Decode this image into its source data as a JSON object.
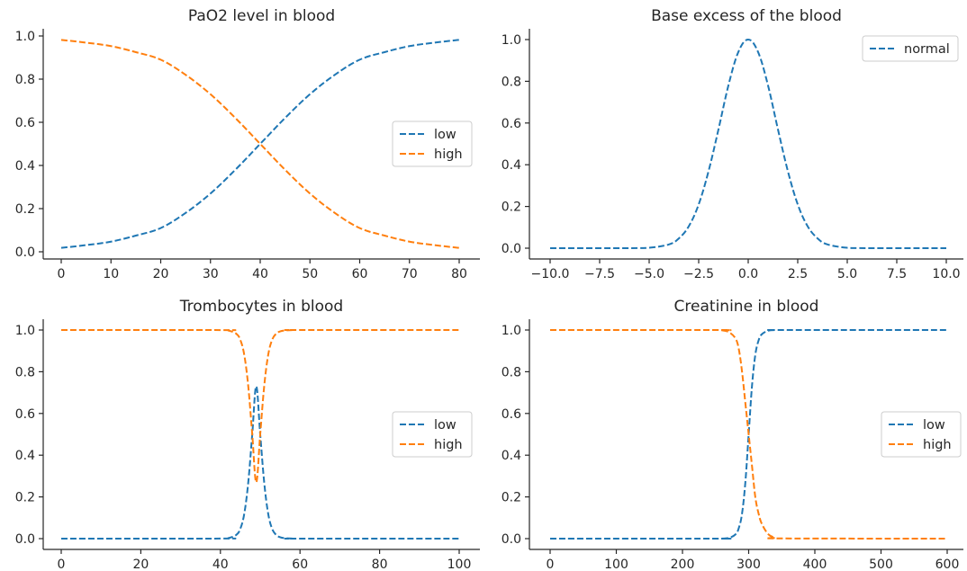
{
  "colors": {
    "low": "#1f77b4",
    "high": "#ff7f0e",
    "normal": "#1f77b4"
  },
  "chart_data": [
    {
      "type": "line",
      "title": "PaO2 level in blood",
      "xlim": [
        0,
        80
      ],
      "ylim": [
        0,
        1
      ],
      "xticks": [
        "0",
        "10",
        "20",
        "30",
        "40",
        "50",
        "60",
        "70",
        "80"
      ],
      "xtick_values": [
        0,
        10,
        20,
        30,
        40,
        50,
        60,
        70,
        80
      ],
      "yticks": [
        "0.0",
        "0.2",
        "0.4",
        "0.6",
        "0.8",
        "1.0"
      ],
      "ytick_values": [
        0,
        0.2,
        0.4,
        0.6,
        0.8,
        1.0
      ],
      "legend": "center-right",
      "x": [
        0,
        5,
        10,
        15,
        20,
        25,
        30,
        35,
        40,
        45,
        50,
        55,
        60,
        65,
        70,
        75,
        80
      ],
      "series": [
        {
          "name": "low",
          "color_key": "low",
          "values": [
            0.018,
            0.031,
            0.047,
            0.075,
            0.11,
            0.18,
            0.27,
            0.38,
            0.5,
            0.62,
            0.73,
            0.82,
            0.89,
            0.925,
            0.953,
            0.969,
            0.982
          ]
        },
        {
          "name": "high",
          "color_key": "high",
          "values": [
            0.982,
            0.969,
            0.953,
            0.925,
            0.89,
            0.82,
            0.73,
            0.62,
            0.5,
            0.38,
            0.27,
            0.18,
            0.11,
            0.075,
            0.047,
            0.031,
            0.018
          ]
        }
      ]
    },
    {
      "type": "line",
      "title": "Base excess of the blood",
      "xlim": [
        -10,
        10
      ],
      "ylim": [
        0,
        1
      ],
      "xticks": [
        "−10.0",
        "−7.5",
        "−5.0",
        "−2.5",
        "0.0",
        "2.5",
        "5.0",
        "7.5",
        "10.0"
      ],
      "xtick_values": [
        -10,
        -7.5,
        -5,
        -2.5,
        0,
        2.5,
        5,
        7.5,
        10
      ],
      "yticks": [
        "0.0",
        "0.2",
        "0.4",
        "0.6",
        "0.8",
        "1.0"
      ],
      "ytick_values": [
        0,
        0.2,
        0.4,
        0.6,
        0.8,
        1.0
      ],
      "legend": "top-right",
      "x": [
        -10,
        -6,
        -5,
        -4,
        -3.5,
        -3,
        -2.5,
        -2,
        -1.5,
        -1,
        -0.5,
        0,
        0.5,
        1,
        1.5,
        2,
        2.5,
        3,
        3.5,
        4,
        5,
        6,
        10
      ],
      "series": [
        {
          "name": "normal",
          "color_key": "normal",
          "values": [
            0,
            0.0002,
            0.002,
            0.018,
            0.047,
            0.105,
            0.21,
            0.37,
            0.57,
            0.78,
            0.94,
            1.0,
            0.94,
            0.78,
            0.57,
            0.37,
            0.21,
            0.105,
            0.047,
            0.018,
            0.002,
            0.0002,
            0
          ]
        }
      ]
    },
    {
      "type": "line",
      "title": "Trombocytes in blood",
      "xlim": [
        0,
        100
      ],
      "ylim": [
        0,
        1
      ],
      "xticks": [
        "0",
        "20",
        "40",
        "60",
        "80",
        "100"
      ],
      "xtick_values": [
        0,
        20,
        40,
        60,
        80,
        100
      ],
      "yticks": [
        "0.0",
        "0.2",
        "0.4",
        "0.6",
        "0.8",
        "1.0"
      ],
      "ytick_values": [
        0,
        0.2,
        0.4,
        0.6,
        0.8,
        1.0
      ],
      "legend": "center-right",
      "x": [
        0,
        40,
        42,
        44,
        45,
        46,
        47,
        48,
        49,
        50,
        51,
        52,
        53,
        54,
        55,
        56,
        58,
        60,
        100
      ],
      "series": [
        {
          "name": "low",
          "color_key": "low",
          "values": [
            0,
            0.0003,
            0.0025,
            0.018,
            0.047,
            0.12,
            0.27,
            0.5,
            0.73,
            0.5,
            0.27,
            0.12,
            0.047,
            0.018,
            0.0067,
            0.0025,
            0.0003,
            0,
            0
          ]
        },
        {
          "name": "high",
          "color_key": "high",
          "values": [
            1,
            0.9997,
            0.9975,
            0.982,
            0.953,
            0.88,
            0.73,
            0.5,
            0.27,
            0.5,
            0.73,
            0.88,
            0.953,
            0.982,
            0.9933,
            0.9975,
            0.9997,
            1,
            1
          ]
        }
      ]
    },
    {
      "type": "line",
      "title": "Creatinine in blood",
      "xlim": [
        0,
        600
      ],
      "ylim": [
        0,
        1
      ],
      "xticks": [
        "0",
        "100",
        "200",
        "300",
        "400",
        "500",
        "600"
      ],
      "xtick_values": [
        0,
        100,
        200,
        300,
        400,
        500,
        600
      ],
      "yticks": [
        "0.0",
        "0.2",
        "0.4",
        "0.6",
        "0.8",
        "1.0"
      ],
      "ytick_values": [
        0,
        0.2,
        0.4,
        0.6,
        0.8,
        1.0
      ],
      "legend": "center-right",
      "x": [
        0,
        250,
        260,
        270,
        280,
        285,
        290,
        295,
        300,
        305,
        310,
        315,
        320,
        330,
        340,
        350,
        600
      ],
      "series": [
        {
          "name": "low",
          "color_key": "low",
          "values": [
            0,
            0.0001,
            0.0005,
            0.003,
            0.02,
            0.05,
            0.12,
            0.27,
            0.5,
            0.73,
            0.88,
            0.95,
            0.98,
            0.997,
            0.9995,
            1,
            1
          ]
        },
        {
          "name": "high",
          "color_key": "high",
          "values": [
            1,
            0.9999,
            0.998,
            0.99,
            0.96,
            0.91,
            0.8,
            0.65,
            0.5,
            0.35,
            0.2,
            0.12,
            0.07,
            0.02,
            0.005,
            0.001,
            0
          ]
        }
      ]
    }
  ]
}
